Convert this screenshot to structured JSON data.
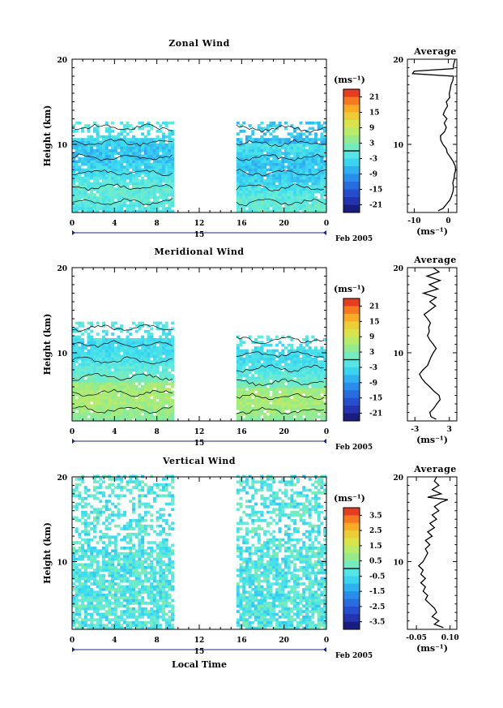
{
  "chart_data": [
    {
      "type": "heatmap",
      "title": "Zonal Wind",
      "xlabel": "",
      "ylabel": "Height (km)",
      "xticks": [
        "0",
        "4",
        "8",
        "12",
        "16",
        "20",
        "0"
      ],
      "yticks": [
        "10",
        "20"
      ],
      "xlim": [
        0,
        24
      ],
      "ylim": [
        2,
        20
      ],
      "date_label": "15",
      "month_label": "Feb 2005",
      "colorbar_unit": "(ms⁻¹)",
      "colorbar_ticks": [
        "21",
        "15",
        "9",
        "3",
        "-3",
        "-9",
        "-15",
        "-21"
      ],
      "colorbar_range": [
        -24,
        24
      ],
      "data_segments": [
        {
          "start": 0,
          "end": 9.5,
          "top_km": 12.5
        },
        {
          "start": 15.5,
          "end": 24,
          "top_km": 12.4
        }
      ],
      "average": {
        "title": "Average",
        "xlabel": "(ms⁻¹)",
        "xticks": [
          "-10",
          "0"
        ],
        "yticks": [
          "10",
          "20"
        ],
        "xlim": [
          -12,
          2.5
        ],
        "ylim": [
          2,
          20
        ],
        "profile": [
          [
            2.2,
            -3
          ],
          [
            2.5,
            -1.5
          ],
          [
            3,
            -0.5
          ],
          [
            3.5,
            0.5
          ],
          [
            4,
            1
          ],
          [
            4.5,
            1.4
          ],
          [
            5,
            1.5
          ],
          [
            5.5,
            1.3
          ],
          [
            6,
            1.7
          ],
          [
            6.5,
            1.8
          ],
          [
            7,
            2.2
          ],
          [
            7.5,
            2
          ],
          [
            8,
            1.4
          ],
          [
            8.5,
            0.6
          ],
          [
            9,
            -0.3
          ],
          [
            9.5,
            -0.6
          ],
          [
            10,
            -1.6
          ],
          [
            10.5,
            -2.2
          ],
          [
            11,
            -2.3
          ],
          [
            11.5,
            -1.1
          ],
          [
            12,
            -0.6
          ],
          [
            12.5,
            -1.2
          ],
          [
            13,
            -0.4
          ],
          [
            13.5,
            -1.5
          ],
          [
            14,
            -1
          ],
          [
            14.5,
            -0.2
          ],
          [
            15,
            -0.6
          ],
          [
            15.5,
            0.4
          ],
          [
            16,
            0.3
          ],
          [
            16.5,
            0.6
          ],
          [
            17,
            0.8
          ],
          [
            17.5,
            1.3
          ],
          [
            18,
            1.5
          ],
          [
            18.3,
            -10.5
          ],
          [
            18.6,
            -10
          ],
          [
            18.9,
            1.5
          ],
          [
            19.3,
            1.5
          ],
          [
            20,
            2
          ]
        ]
      }
    },
    {
      "type": "heatmap",
      "title": "Meridional Wind",
      "xlabel": "",
      "ylabel": "Height (km)",
      "xticks": [
        "0",
        "4",
        "8",
        "12",
        "16",
        "20",
        "0"
      ],
      "yticks": [
        "10",
        "20"
      ],
      "xlim": [
        0,
        24
      ],
      "ylim": [
        2,
        20
      ],
      "date_label": "15",
      "month_label": "Feb 2005",
      "colorbar_unit": "(ms⁻¹)",
      "colorbar_ticks": [
        "21",
        "15",
        "9",
        "3",
        "-3",
        "-9",
        "-15",
        "-21"
      ],
      "colorbar_range": [
        -24,
        24
      ],
      "data_segments": [
        {
          "start": 0,
          "end": 9.5,
          "top_km": 13.5
        },
        {
          "start": 15.5,
          "end": 24,
          "top_km": 12.0
        }
      ],
      "average": {
        "title": "Average",
        "xlabel": "(ms⁻¹)",
        "xticks": [
          "-3",
          "3"
        ],
        "yticks": [
          "10",
          "20"
        ],
        "xlim": [
          -4.3,
          4.3
        ],
        "ylim": [
          2,
          20
        ],
        "profile": [
          [
            2.2,
            0.7
          ],
          [
            2.5,
            -0.2
          ],
          [
            3,
            -0.4
          ],
          [
            3.5,
            0.3
          ],
          [
            4,
            0.8
          ],
          [
            4.5,
            1.4
          ],
          [
            5,
            1.2
          ],
          [
            5.5,
            0.3
          ],
          [
            6,
            -0.4
          ],
          [
            6.5,
            -1.2
          ],
          [
            7,
            -1.8
          ],
          [
            7.5,
            -2.2
          ],
          [
            8,
            -1.6
          ],
          [
            8.5,
            -0.8
          ],
          [
            9,
            -0.5
          ],
          [
            9.5,
            -0.2
          ],
          [
            10,
            0.2
          ],
          [
            10.5,
            0.7
          ],
          [
            11,
            0.2
          ],
          [
            11.5,
            -0.4
          ],
          [
            12,
            -0.8
          ],
          [
            12.5,
            -0.5
          ],
          [
            13,
            -0.6
          ],
          [
            13.5,
            -0.3
          ],
          [
            14,
            -0.8
          ],
          [
            14.5,
            -1.4
          ],
          [
            15,
            -0.4
          ],
          [
            15.5,
            0.6
          ],
          [
            16,
            -0.4
          ],
          [
            16.5,
            0.7
          ],
          [
            17,
            -1.5
          ],
          [
            17.5,
            1
          ],
          [
            18,
            -0.5
          ],
          [
            18.5,
            1.4
          ],
          [
            19,
            -0.9
          ],
          [
            19.5,
            1.2
          ],
          [
            20,
            0.2
          ]
        ]
      }
    },
    {
      "type": "heatmap",
      "title": "Vertical Wind",
      "xlabel": "Local Time",
      "ylabel": "Height (km)",
      "xticks": [
        "0",
        "4",
        "8",
        "12",
        "16",
        "20",
        "0"
      ],
      "yticks": [
        "10",
        "20"
      ],
      "xlim": [
        0,
        24
      ],
      "ylim": [
        2,
        20
      ],
      "date_label": "15",
      "month_label": "Feb 2005",
      "colorbar_unit": "(ms⁻¹)",
      "colorbar_ticks": [
        "3.5",
        "2.5",
        "1.5",
        "0.5",
        "-0.5",
        "-1.5",
        "-2.5",
        "-3.5"
      ],
      "colorbar_range": [
        -4,
        4
      ],
      "data_segments": [
        {
          "start": 0,
          "end": 9.5,
          "top_km": 20
        },
        {
          "start": 15.5,
          "end": 24,
          "top_km": 20
        }
      ],
      "average": {
        "title": "Average",
        "xlabel": "(ms⁻¹)",
        "xticks": [
          "-0.05",
          "0.10"
        ],
        "yticks": [
          "10",
          "20"
        ],
        "xlim": [
          -0.09,
          0.13
        ],
        "ylim": [
          2,
          20
        ],
        "profile": [
          [
            2.2,
            0.07
          ],
          [
            2.6,
            0.03
          ],
          [
            3,
            0.05
          ],
          [
            3.5,
            0.02
          ],
          [
            4,
            0.04
          ],
          [
            4.5,
            0.03
          ],
          [
            5,
            0.01
          ],
          [
            5.5,
            -0.01
          ],
          [
            6,
            0.0
          ],
          [
            6.5,
            -0.02
          ],
          [
            7,
            -0.01
          ],
          [
            7.5,
            -0.03
          ],
          [
            8,
            -0.01
          ],
          [
            8.5,
            -0.03
          ],
          [
            9,
            -0.02
          ],
          [
            9.5,
            -0.04
          ],
          [
            10,
            -0.02
          ],
          [
            10.5,
            -0.01
          ],
          [
            11,
            0.0
          ],
          [
            11.5,
            -0.01
          ],
          [
            12,
            0.01
          ],
          [
            12.5,
            -0.01
          ],
          [
            13,
            0.02
          ],
          [
            13.5,
            0.0
          ],
          [
            14,
            0.03
          ],
          [
            14.5,
            0.01
          ],
          [
            15,
            0.04
          ],
          [
            15.5,
            0.02
          ],
          [
            16,
            0.05
          ],
          [
            16.5,
            0.03
          ],
          [
            17,
            0.06
          ],
          [
            17.3,
            0.09
          ],
          [
            17.6,
            0.0
          ],
          [
            18,
            0.06
          ],
          [
            18.5,
            0.02
          ],
          [
            19,
            0.05
          ],
          [
            19.5,
            0.03
          ],
          [
            20,
            0.04
          ]
        ]
      }
    }
  ]
}
